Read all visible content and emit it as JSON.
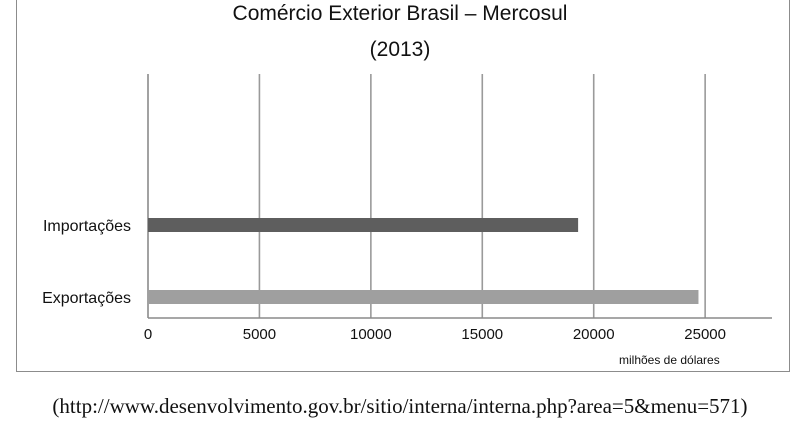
{
  "chart_data": {
    "type": "bar",
    "orientation": "horizontal",
    "title": "Comércio  Exterior Brasil – Mercosul",
    "subtitle": "(2013)",
    "categories": [
      "Importações",
      "Exportações"
    ],
    "series": [
      {
        "values": [
          19300,
          24700
        ],
        "colors": [
          "#5e5e5e",
          "#9f9f9f"
        ]
      }
    ],
    "xlabel": "milhões de dólares",
    "ylabel": "",
    "xlim": [
      0,
      28000
    ],
    "xticks": [
      0,
      5000,
      10000,
      15000,
      20000,
      25000
    ],
    "xtick_labels": [
      "0",
      "5000",
      "10000",
      "15000",
      "20000",
      "25000"
    ],
    "grid": "vertical",
    "legend": "none"
  },
  "source": "(http://www.desenvolvimento.gov.br/sitio/interna/interna.php?area=5&menu=571)"
}
